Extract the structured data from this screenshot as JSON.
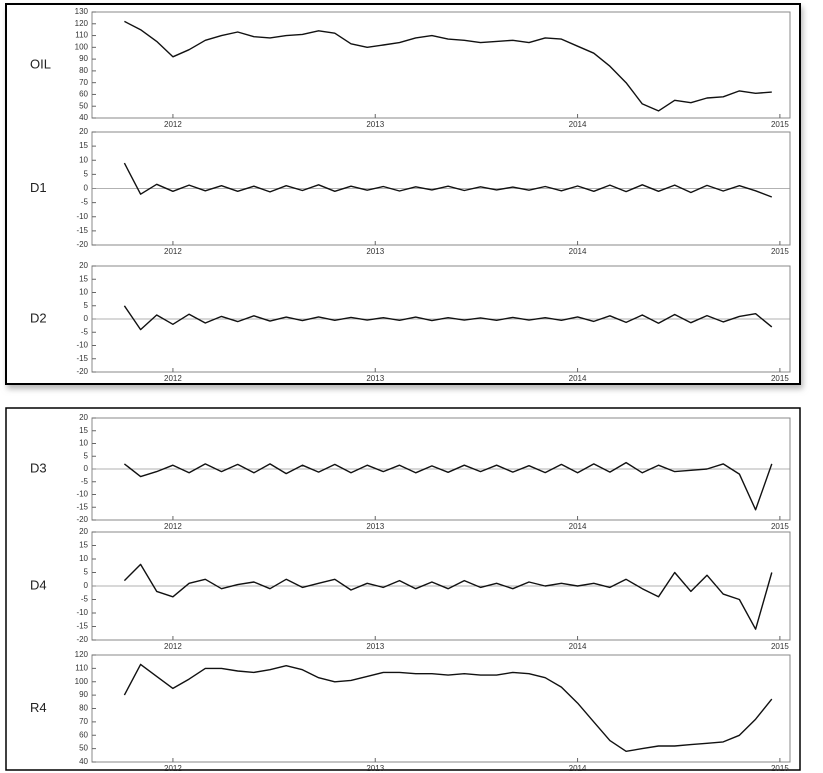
{
  "chart_data": [
    {
      "type": "line",
      "label": "OIL",
      "color": "#111111",
      "xlim": [
        2011.6,
        2015.05
      ],
      "xticks": [
        2012,
        2013,
        2014,
        2015
      ],
      "ylim": [
        40,
        130
      ],
      "yticks": [
        40,
        50,
        60,
        70,
        80,
        90,
        100,
        110,
        120,
        130
      ],
      "x": [
        2011.76,
        2011.84,
        2011.92,
        2012,
        2012.08,
        2012.16,
        2012.24,
        2012.32,
        2012.4,
        2012.48,
        2012.56,
        2012.64,
        2012.72,
        2012.8,
        2012.88,
        2012.96,
        2013.04,
        2013.12,
        2013.2,
        2013.28,
        2013.36,
        2013.44,
        2013.52,
        2013.6,
        2013.68,
        2013.76,
        2013.84,
        2013.92,
        2014,
        2014.08,
        2014.16,
        2014.24,
        2014.32,
        2014.4,
        2014.48,
        2014.56,
        2014.64,
        2014.72,
        2014.8,
        2014.88,
        2014.96
      ],
      "values": [
        122,
        115,
        105,
        92,
        98,
        106,
        110,
        113,
        109,
        108,
        110,
        111,
        114,
        112,
        103,
        100,
        102,
        104,
        108,
        110,
        107,
        106,
        104,
        105,
        106,
        104,
        108,
        107,
        101,
        95,
        84,
        70,
        52,
        46,
        55,
        53,
        57,
        58,
        63,
        61,
        62
      ]
    },
    {
      "type": "line",
      "label": "D1",
      "color": "#111111",
      "xlim": [
        2011.6,
        2015.05
      ],
      "xticks": [
        2012,
        2013,
        2014,
        2015
      ],
      "ylim": [
        -20,
        20
      ],
      "yticks": [
        -20,
        -15,
        -10,
        -5,
        0,
        5,
        10,
        15,
        20
      ],
      "x": [
        2011.76,
        2011.84,
        2011.92,
        2012,
        2012.08,
        2012.16,
        2012.24,
        2012.32,
        2012.4,
        2012.48,
        2012.56,
        2012.64,
        2012.72,
        2012.8,
        2012.88,
        2012.96,
        2013.04,
        2013.12,
        2013.2,
        2013.28,
        2013.36,
        2013.44,
        2013.52,
        2013.6,
        2013.68,
        2013.76,
        2013.84,
        2013.92,
        2014,
        2014.08,
        2014.16,
        2014.24,
        2014.32,
        2014.4,
        2014.48,
        2014.56,
        2014.64,
        2014.72,
        2014.8,
        2014.88,
        2014.96
      ],
      "values": [
        9,
        -2,
        1.5,
        -1,
        1.2,
        -0.8,
        1,
        -1,
        0.8,
        -1.2,
        1,
        -0.7,
        1.3,
        -1,
        0.8,
        -0.6,
        0.7,
        -0.9,
        0.6,
        -0.5,
        0.8,
        -0.7,
        0.6,
        -0.5,
        0.5,
        -0.6,
        0.7,
        -0.8,
        0.9,
        -1,
        1.2,
        -1.1,
        1.3,
        -1,
        1.2,
        -1.4,
        1.1,
        -0.9,
        1,
        -0.8,
        -3
      ]
    },
    {
      "type": "line",
      "label": "D2",
      "color": "#111111",
      "xlim": [
        2011.6,
        2015.05
      ],
      "xticks": [
        2012,
        2013,
        2014,
        2015
      ],
      "ylim": [
        -20,
        20
      ],
      "yticks": [
        -20,
        -15,
        -10,
        -5,
        0,
        5,
        10,
        15,
        20
      ],
      "x": [
        2011.76,
        2011.84,
        2011.92,
        2012,
        2012.08,
        2012.16,
        2012.24,
        2012.32,
        2012.4,
        2012.48,
        2012.56,
        2012.64,
        2012.72,
        2012.8,
        2012.88,
        2012.96,
        2013.04,
        2013.12,
        2013.2,
        2013.28,
        2013.36,
        2013.44,
        2013.52,
        2013.6,
        2013.68,
        2013.76,
        2013.84,
        2013.92,
        2014,
        2014.08,
        2014.16,
        2014.24,
        2014.32,
        2014.4,
        2014.48,
        2014.56,
        2014.64,
        2014.72,
        2014.8,
        2014.88,
        2014.96
      ],
      "values": [
        5,
        -4,
        1.5,
        -2,
        1.8,
        -1.5,
        1,
        -1,
        1.2,
        -0.8,
        0.7,
        -0.6,
        0.8,
        -0.5,
        0.6,
        -0.4,
        0.5,
        -0.5,
        0.7,
        -0.6,
        0.5,
        -0.4,
        0.4,
        -0.5,
        0.6,
        -0.4,
        0.5,
        -0.5,
        0.8,
        -0.9,
        1.2,
        -1.3,
        1.5,
        -1.6,
        1.7,
        -1.4,
        1.3,
        -1.1,
        1,
        2,
        -3
      ]
    },
    {
      "type": "line",
      "label": "D3",
      "color": "#111111",
      "xlim": [
        2011.6,
        2015.05
      ],
      "xticks": [
        2012,
        2013,
        2014,
        2015
      ],
      "ylim": [
        -20,
        20
      ],
      "yticks": [
        -20,
        -15,
        -10,
        -5,
        0,
        5,
        10,
        15,
        20
      ],
      "x": [
        2011.76,
        2011.84,
        2011.92,
        2012,
        2012.08,
        2012.16,
        2012.24,
        2012.32,
        2012.4,
        2012.48,
        2012.56,
        2012.64,
        2012.72,
        2012.8,
        2012.88,
        2012.96,
        2013.04,
        2013.12,
        2013.2,
        2013.28,
        2013.36,
        2013.44,
        2013.52,
        2013.6,
        2013.68,
        2013.76,
        2013.84,
        2013.92,
        2014,
        2014.08,
        2014.16,
        2014.24,
        2014.32,
        2014.4,
        2014.48,
        2014.56,
        2014.64,
        2014.72,
        2014.8,
        2014.88,
        2014.96
      ],
      "values": [
        2,
        -3,
        -1,
        1.5,
        -1.5,
        2,
        -1,
        1.8,
        -1.5,
        2,
        -1.8,
        1.5,
        -1.2,
        1.8,
        -1.5,
        1.5,
        -1,
        1.5,
        -1.5,
        1.2,
        -1.3,
        1.5,
        -1,
        1.5,
        -1.2,
        1.3,
        -1.4,
        1.8,
        -1.5,
        2,
        -1.2,
        2.5,
        -1.5,
        1.5,
        -1,
        -0.5,
        0,
        2,
        -2,
        -16,
        2
      ]
    },
    {
      "type": "line",
      "label": "D4",
      "color": "#111111",
      "xlim": [
        2011.6,
        2015.05
      ],
      "xticks": [
        2012,
        2013,
        2014,
        2015
      ],
      "ylim": [
        -20,
        20
      ],
      "yticks": [
        -20,
        -15,
        -10,
        -5,
        0,
        5,
        10,
        15,
        20
      ],
      "x": [
        2011.76,
        2011.84,
        2011.92,
        2012,
        2012.08,
        2012.16,
        2012.24,
        2012.32,
        2012.4,
        2012.48,
        2012.56,
        2012.64,
        2012.72,
        2012.8,
        2012.88,
        2012.96,
        2013.04,
        2013.12,
        2013.2,
        2013.28,
        2013.36,
        2013.44,
        2013.52,
        2013.6,
        2013.68,
        2013.76,
        2013.84,
        2013.92,
        2014,
        2014.08,
        2014.16,
        2014.24,
        2014.32,
        2014.4,
        2014.48,
        2014.56,
        2014.64,
        2014.72,
        2014.8,
        2014.88,
        2014.96
      ],
      "values": [
        2,
        8,
        -2,
        -4,
        1,
        2.5,
        -1,
        0.5,
        1.5,
        -1,
        2.5,
        -0.5,
        1,
        2.5,
        -1.5,
        1,
        -0.5,
        2,
        -1,
        1.5,
        -1,
        2,
        -0.5,
        1,
        -1,
        1.5,
        0,
        1,
        0,
        1,
        -0.5,
        2.5,
        -1,
        -4,
        5,
        -2,
        4,
        -3,
        -5,
        -16,
        5
      ]
    },
    {
      "type": "line",
      "label": "R4",
      "color": "#111111",
      "xlim": [
        2011.6,
        2015.05
      ],
      "xticks": [
        2012,
        2013,
        2014,
        2015
      ],
      "ylim": [
        40,
        120
      ],
      "yticks": [
        40,
        50,
        60,
        70,
        80,
        90,
        100,
        110,
        120
      ],
      "x": [
        2011.76,
        2011.84,
        2011.92,
        2012,
        2012.08,
        2012.16,
        2012.24,
        2012.32,
        2012.4,
        2012.48,
        2012.56,
        2012.64,
        2012.72,
        2012.8,
        2012.88,
        2012.96,
        2013.04,
        2013.12,
        2013.2,
        2013.28,
        2013.36,
        2013.44,
        2013.52,
        2013.6,
        2013.68,
        2013.76,
        2013.84,
        2013.92,
        2014,
        2014.08,
        2014.16,
        2014.24,
        2014.32,
        2014.4,
        2014.48,
        2014.56,
        2014.64,
        2014.72,
        2014.8,
        2014.88,
        2014.96
      ],
      "values": [
        90,
        113,
        104,
        95,
        102,
        110,
        110,
        108,
        107,
        109,
        112,
        109,
        103,
        100,
        101,
        104,
        107,
        107,
        106,
        106,
        105,
        106,
        105,
        105,
        107,
        106,
        103,
        96,
        84,
        70,
        56,
        48,
        50,
        52,
        52,
        53,
        54,
        55,
        60,
        72,
        87
      ]
    }
  ]
}
